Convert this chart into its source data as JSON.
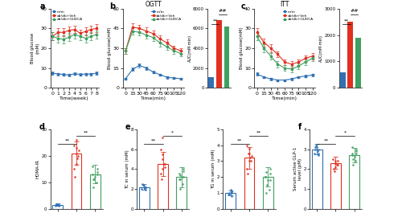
{
  "colors": {
    "mm": "#3070b3",
    "dbdb_veh": "#e03020",
    "dbdb_gudca": "#40a060"
  },
  "panel_a": {
    "xlabel": "Time(week)",
    "ylabel": "Blood glucose\n(mM)",
    "weeks": [
      0,
      1,
      2,
      3,
      4,
      5,
      6,
      7,
      8
    ],
    "mm_mean": [
      7.5,
      7.0,
      6.8,
      6.5,
      7.2,
      6.8,
      7.0,
      7.0,
      7.5
    ],
    "mm_sd": [
      0.7,
      0.6,
      0.6,
      0.5,
      0.6,
      0.6,
      0.6,
      0.6,
      0.7
    ],
    "veh_mean": [
      26.0,
      28.0,
      28.0,
      29.0,
      29.5,
      27.5,
      28.5,
      29.5,
      30.0
    ],
    "veh_sd": [
      2.0,
      2.0,
      2.0,
      2.0,
      2.0,
      2.0,
      2.0,
      2.0,
      2.0
    ],
    "gudca_mean": [
      26.0,
      25.0,
      24.5,
      25.5,
      27.0,
      26.0,
      25.0,
      26.0,
      27.0
    ],
    "gudca_sd": [
      2.0,
      2.0,
      2.0,
      2.0,
      2.0,
      2.0,
      2.0,
      2.0,
      2.0
    ],
    "ylim": [
      0,
      40
    ],
    "yticks": [
      0,
      10,
      20,
      30,
      40
    ]
  },
  "panel_b": {
    "title": "OGTT",
    "xlabel": "Time(min)",
    "ylabel": "Blood glucose(mM)",
    "times": [
      0,
      15,
      30,
      45,
      60,
      75,
      90,
      105,
      120
    ],
    "mm_mean": [
      7.0,
      14.0,
      17.0,
      15.0,
      12.0,
      10.0,
      8.0,
      7.5,
      7.0
    ],
    "mm_sd": [
      0.8,
      1.2,
      1.5,
      1.2,
      1.0,
      0.8,
      0.8,
      0.7,
      0.7
    ],
    "veh_mean": [
      28.0,
      46.0,
      45.0,
      43.0,
      41.0,
      37.0,
      34.0,
      30.0,
      28.0
    ],
    "veh_sd": [
      2.0,
      3.0,
      2.5,
      2.5,
      2.5,
      2.5,
      2.5,
      2.0,
      2.0
    ],
    "gudca_mean": [
      28.0,
      43.0,
      42.0,
      40.0,
      38.0,
      34.0,
      31.0,
      28.0,
      26.0
    ],
    "gudca_sd": [
      2.0,
      2.5,
      2.5,
      2.5,
      2.5,
      2.5,
      2.0,
      2.0,
      2.0
    ],
    "ylim": [
      0,
      60
    ],
    "yticks": [
      0,
      15,
      30,
      45,
      60
    ],
    "auc_mm": 1100,
    "auc_veh": 6800,
    "auc_gudca": 6200,
    "auc_ylim": [
      0,
      8000
    ],
    "auc_yticks": [
      0,
      2000,
      4000,
      6000,
      8000
    ]
  },
  "panel_c": {
    "title": "ITT",
    "xlabel": "Time(min)",
    "ylabel": "Blood glucose(mM)",
    "times": [
      0,
      15,
      30,
      45,
      60,
      75,
      90,
      105,
      120
    ],
    "mm_mean": [
      7.0,
      5.5,
      4.5,
      4.0,
      4.0,
      4.5,
      5.5,
      6.0,
      6.5
    ],
    "mm_sd": [
      0.7,
      0.5,
      0.5,
      0.4,
      0.4,
      0.5,
      0.5,
      0.6,
      0.6
    ],
    "veh_mean": [
      28.0,
      23.0,
      20.0,
      17.0,
      13.0,
      12.0,
      13.0,
      15.0,
      16.0
    ],
    "veh_sd": [
      2.0,
      2.0,
      2.0,
      1.5,
      1.5,
      1.5,
      1.5,
      1.5,
      1.5
    ],
    "gudca_mean": [
      26.0,
      20.0,
      16.0,
      12.0,
      10.0,
      9.5,
      11.0,
      13.0,
      15.0
    ],
    "gudca_sd": [
      2.0,
      2.0,
      1.5,
      1.5,
      1.5,
      1.5,
      1.5,
      1.5,
      1.5
    ],
    "ylim": [
      0,
      40
    ],
    "yticks": [
      0,
      10,
      20,
      30,
      40
    ],
    "auc_mm": 600,
    "auc_veh": 2500,
    "auc_gudca": 1900,
    "auc_ylim": [
      0,
      3000
    ],
    "auc_yticks": [
      0,
      1000,
      2000,
      3000
    ]
  },
  "panel_d": {
    "ylabel": "HOMA-IR",
    "ylim": [
      0,
      30
    ],
    "yticks": [
      0,
      10,
      20,
      30
    ],
    "mm_mean": 1.5,
    "mm_sd": 0.4,
    "mm_dots": [
      1.1,
      1.2,
      1.3,
      1.4,
      1.5,
      1.6,
      1.7
    ],
    "veh_mean": 21.0,
    "veh_sd": 4.5,
    "veh_dots": [
      12,
      15,
      17,
      19,
      21,
      23,
      24,
      26,
      22,
      20
    ],
    "gudca_mean": 13.0,
    "gudca_sd": 3.5,
    "gudca_dots": [
      8,
      10,
      11,
      12,
      13,
      14,
      15,
      16,
      13,
      11
    ]
  },
  "panel_tc": {
    "ylabel": "TC in serum (mM)",
    "ylim": [
      0,
      8
    ],
    "yticks": [
      0,
      2,
      4,
      6,
      8
    ],
    "mm_mean": 2.2,
    "mm_sd": 0.3,
    "mm_dots": [
      1.9,
      2.0,
      2.1,
      2.2,
      2.3,
      2.4,
      2.5,
      2.2
    ],
    "veh_mean": 4.5,
    "veh_sd": 1.2,
    "veh_dots": [
      3.0,
      3.5,
      4.0,
      4.5,
      5.0,
      5.5,
      6.0,
      7.2,
      4.2,
      4.5
    ],
    "gudca_mean": 3.2,
    "gudca_sd": 1.0,
    "gudca_dots": [
      2.0,
      2.5,
      3.0,
      3.2,
      3.5,
      3.8,
      4.0,
      3.0,
      3.2,
      3.4
    ]
  },
  "panel_tg": {
    "ylabel": "TG in serum (mM)",
    "ylim": [
      0,
      5
    ],
    "yticks": [
      0,
      1,
      2,
      3,
      4,
      5
    ],
    "mm_mean": 1.0,
    "mm_sd": 0.15,
    "mm_dots": [
      0.8,
      0.9,
      1.0,
      1.1,
      1.2,
      1.0,
      0.9,
      1.1
    ],
    "veh_mean": 3.2,
    "veh_sd": 0.7,
    "veh_dots": [
      2.2,
      2.5,
      3.0,
      3.2,
      3.5,
      3.8,
      4.0,
      3.5,
      3.3,
      3.0
    ],
    "gudca_mean": 2.0,
    "gudca_sd": 0.6,
    "gudca_dots": [
      1.0,
      1.2,
      1.5,
      1.8,
      2.0,
      2.5,
      2.2,
      2.0,
      1.8,
      2.3
    ]
  },
  "panel_f": {
    "ylabel": "Serum active GLP-1\nlevel (pM)",
    "ylim": [
      0,
      4
    ],
    "yticks": [
      0,
      1,
      2,
      3,
      4
    ],
    "mm_mean": 3.0,
    "mm_sd": 0.25,
    "mm_dots": [
      2.7,
      2.8,
      2.9,
      3.0,
      3.1,
      3.2,
      3.0,
      2.8,
      3.1
    ],
    "veh_mean": 2.3,
    "veh_sd": 0.3,
    "veh_dots": [
      1.9,
      2.0,
      2.1,
      2.2,
      2.3,
      2.4,
      2.5,
      2.3,
      2.2,
      2.4
    ],
    "gudca_mean": 2.7,
    "gudca_sd": 0.35,
    "gudca_dots": [
      2.2,
      2.4,
      2.5,
      2.6,
      2.8,
      3.0,
      2.9,
      2.7,
      2.8,
      3.1
    ]
  }
}
